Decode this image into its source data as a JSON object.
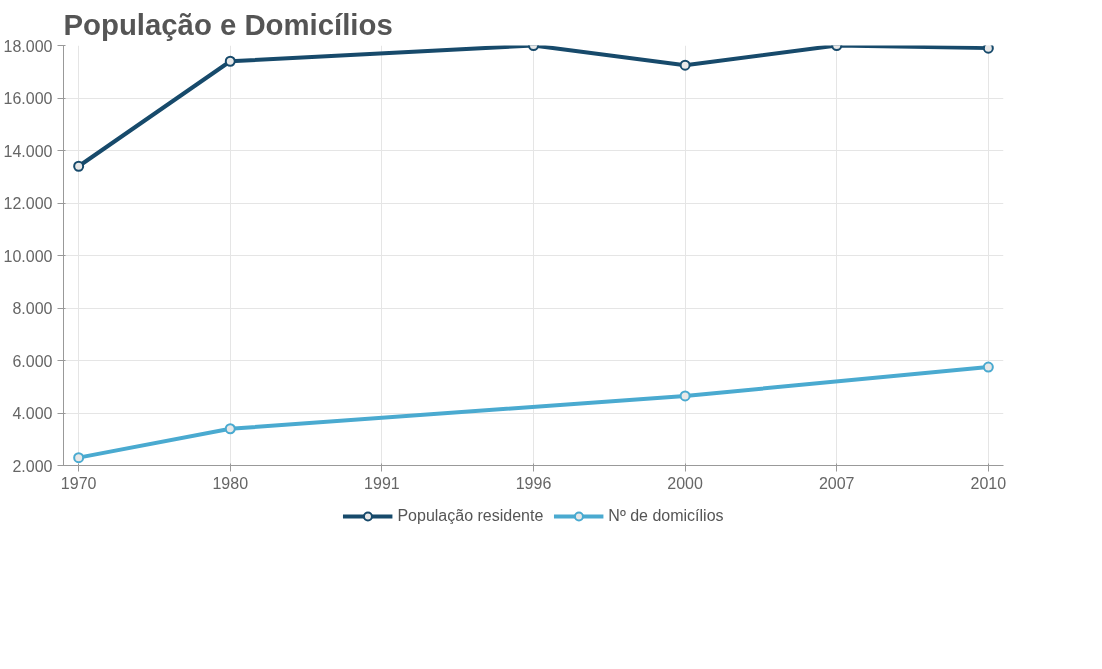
{
  "chart_data": {
    "type": "line",
    "title": "População e Domicílios",
    "categories": [
      "1970",
      "1980",
      "1991",
      "1996",
      "2000",
      "2007",
      "2010"
    ],
    "series": [
      {
        "name": "População residente",
        "color": "#174a6b",
        "values": [
          13400,
          17400,
          null,
          18000,
          17250,
          18000,
          17900
        ]
      },
      {
        "name": "Nº de domicílios",
        "color": "#4aaad0",
        "values": [
          2300,
          3400,
          null,
          null,
          4650,
          null,
          5750
        ]
      }
    ],
    "ylim": [
      2000,
      18000
    ],
    "yticks": [
      {
        "value": 2000,
        "label": "2.000"
      },
      {
        "value": 4000,
        "label": "4.000"
      },
      {
        "value": 6000,
        "label": "6.000"
      },
      {
        "value": 8000,
        "label": "8.000"
      },
      {
        "value": 10000,
        "label": "10.000"
      },
      {
        "value": 12000,
        "label": "12.000"
      },
      {
        "value": 14000,
        "label": "14.000"
      },
      {
        "value": 16000,
        "label": "16.000"
      },
      {
        "value": 18000,
        "label": "18.000"
      }
    ],
    "grid": true,
    "legend": "bottom",
    "marker": "circle",
    "line_style": "solid"
  }
}
